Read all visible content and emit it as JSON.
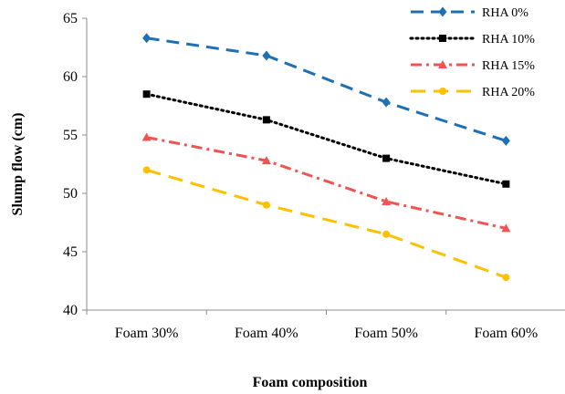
{
  "chart_data": {
    "type": "line",
    "title": "",
    "xlabel": "Foam composition",
    "ylabel": "Slump flow (cm)",
    "categories": [
      "Foam 30%",
      "Foam 40%",
      "Foam 50%",
      "Foam 60%"
    ],
    "ylim": [
      40,
      65
    ],
    "yticks": [
      40,
      45,
      50,
      55,
      60,
      65
    ],
    "grid": false,
    "legend_position": "top-right",
    "series": [
      {
        "name": "RHA 0%",
        "values": [
          63.3,
          61.8,
          57.8,
          54.5
        ],
        "color": "#1f6fb4",
        "dash": "long-dash",
        "marker": "diamond"
      },
      {
        "name": "RHA 10%",
        "values": [
          58.5,
          56.3,
          53.0,
          50.8
        ],
        "color": "#000000",
        "dash": "dotted",
        "marker": "square"
      },
      {
        "name": "RHA 15%",
        "values": [
          54.8,
          52.8,
          49.3,
          47.0
        ],
        "color": "#ef5454",
        "dash": "dash-dot",
        "marker": "triangle"
      },
      {
        "name": "RHA 20%",
        "values": [
          52.0,
          49.0,
          46.5,
          42.8
        ],
        "color": "#ffc000",
        "dash": "dash",
        "marker": "circle"
      }
    ]
  }
}
